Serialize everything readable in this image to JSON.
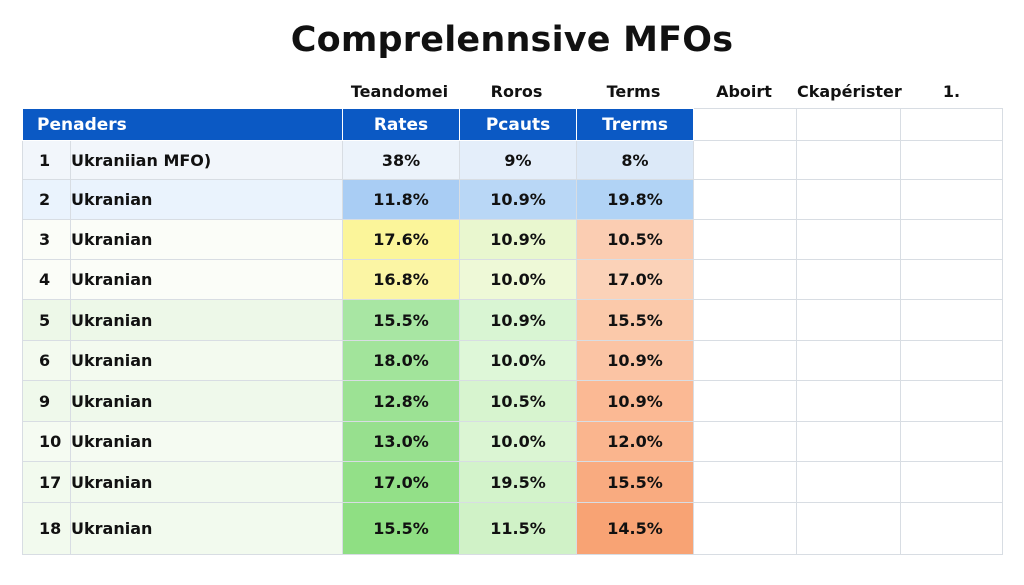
{
  "title": "Comprelennsive MFOs",
  "top_labels": [
    "Teandomei",
    "Roros",
    "Terms",
    "Aboirt",
    "Ckapérister",
    "1."
  ],
  "headers": [
    "Penaders",
    "Rates",
    "Pcauts",
    "Trerms"
  ],
  "rows": [
    {
      "num": "1",
      "name": "Ukraniian MFO)",
      "rate": "38%",
      "pcauts": "9%",
      "terms": "8%",
      "bg": "#f2f6fb",
      "c1": "#ecf3fb",
      "c2": "#e4eefa",
      "c3": "#dce9f8"
    },
    {
      "num": "2",
      "name": "Ukranian",
      "rate": "11.8%",
      "pcauts": "10.9%",
      "terms": "19.8%",
      "bg": "#eaf3fd",
      "c1": "#a9cdf4",
      "c2": "#b9d7f6",
      "c3": "#b1d3f5"
    },
    {
      "num": "3",
      "name": "Ukranian",
      "rate": "17.6%",
      "pcauts": "10.9%",
      "terms": "10.5%",
      "bg": "#fbfdf8",
      "c1": "#fbf59a",
      "c2": "#e9f7cf",
      "c3": "#fbcdb2"
    },
    {
      "num": "4",
      "name": "Ukranian",
      "rate": "16.8%",
      "pcauts": "10.0%",
      "terms": "17.0%",
      "bg": "#fbfdf8",
      "c1": "#fbf5a4",
      "c2": "#eef9d7",
      "c3": "#fbd2b8"
    },
    {
      "num": "5",
      "name": "Ukranian",
      "rate": "15.5%",
      "pcauts": "10.9%",
      "terms": "15.5%",
      "bg": "#edf8e8",
      "c1": "#a8e6a3",
      "c2": "#d9f5d3",
      "c3": "#fbc9aa"
    },
    {
      "num": "6",
      "name": "Ukranian",
      "rate": "18.0%",
      "pcauts": "10.0%",
      "terms": "10.9%",
      "bg": "#f3faef",
      "c1": "#a2e49b",
      "c2": "#def7d8",
      "c3": "#fbc4a4"
    },
    {
      "num": "9",
      "name": "Ukranian",
      "rate": "12.8%",
      "pcauts": "10.5%",
      "terms": "10.9%",
      "bg": "#eff9eb",
      "c1": "#9ce294",
      "c2": "#d7f4cf",
      "c3": "#fbb994"
    },
    {
      "num": "10",
      "name": "Ukranian",
      "rate": "13.0%",
      "pcauts": "10.0%",
      "terms": "12.0%",
      "bg": "#f5fbf2",
      "c1": "#97e08e",
      "c2": "#dbf5d3",
      "c3": "#fab58e"
    },
    {
      "num": "17",
      "name": "Ukranian",
      "rate": "17.0%",
      "pcauts": "19.5%",
      "terms": "15.5%",
      "bg": "#f2faee",
      "c1": "#93e088",
      "c2": "#d3f3cb",
      "c3": "#f9ab80"
    },
    {
      "num": "18",
      "name": "Ukranian",
      "rate": "15.5%",
      "pcauts": "11.5%",
      "terms": "14.5%",
      "bg": "#f2faee",
      "c1": "#8fdf83",
      "c2": "#d0f2c7",
      "c3": "#f8a374"
    }
  ]
}
